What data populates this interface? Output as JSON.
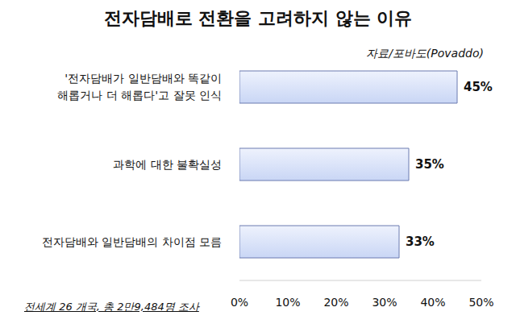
{
  "chart_data": {
    "type": "bar",
    "title": "전자담배로 전환을 고려하지 않는 이유",
    "subtitle": "자료/포바도(Povaddo)",
    "annotations": [
      "전세계 26 개국, 총 2만9,484명 조사"
    ],
    "categories": [
      "'전자담배가 일반담배와 똑같이\n해롭거나 더 해롭다'고 잘못 인식",
      "과학에 대한 불확실성",
      "전자담배와 일반담배의 차이점 모름"
    ],
    "values": [
      45,
      35,
      33
    ],
    "value_labels": [
      "45%",
      "35%",
      "33%"
    ],
    "color": "#c9d6f5",
    "orientation": "horizontal",
    "data_labels": true,
    "grid": false,
    "xlim": [
      0,
      50
    ],
    "xticks": [
      {
        "value": 0,
        "label": "0%"
      },
      {
        "value": 10,
        "label": "10%"
      },
      {
        "value": 20,
        "label": "20%"
      },
      {
        "value": 30,
        "label": "30%"
      },
      {
        "value": 40,
        "label": "40%"
      },
      {
        "value": 50,
        "label": "50%"
      }
    ]
  }
}
